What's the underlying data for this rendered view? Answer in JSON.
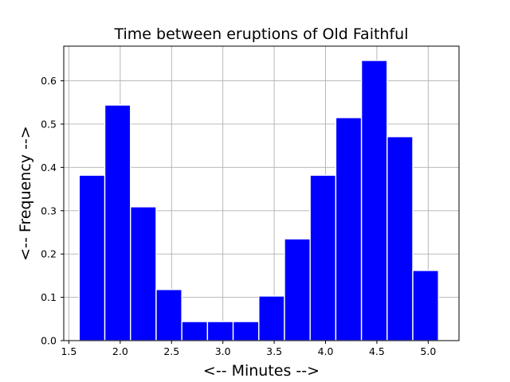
{
  "chart_data": {
    "type": "bar",
    "title": "Time between eruptions of Old Faithful",
    "xlabel": "<-- Minutes -->",
    "ylabel": "<-- Frequency -->",
    "bin_edges": [
      1.6,
      1.85,
      2.1,
      2.35,
      2.6,
      2.85,
      3.1,
      3.35,
      3.6,
      3.85,
      4.1,
      4.35,
      4.6,
      4.85,
      5.1
    ],
    "values": [
      0.382,
      0.544,
      0.309,
      0.118,
      0.044,
      0.044,
      0.044,
      0.103,
      0.235,
      0.382,
      0.515,
      0.647,
      0.471,
      0.162
    ],
    "xlim": [
      1.45,
      5.3
    ],
    "ylim": [
      0,
      0.68
    ],
    "xticks": [
      "1.5",
      "2.0",
      "2.5",
      "3.0",
      "3.5",
      "4.0",
      "4.5",
      "5.0"
    ],
    "yticks": [
      "0.0",
      "0.1",
      "0.2",
      "0.3",
      "0.4",
      "0.5",
      "0.6"
    ],
    "grid": true,
    "bar_color": "#0000ff",
    "bar_edge_color": "#ffffff"
  }
}
